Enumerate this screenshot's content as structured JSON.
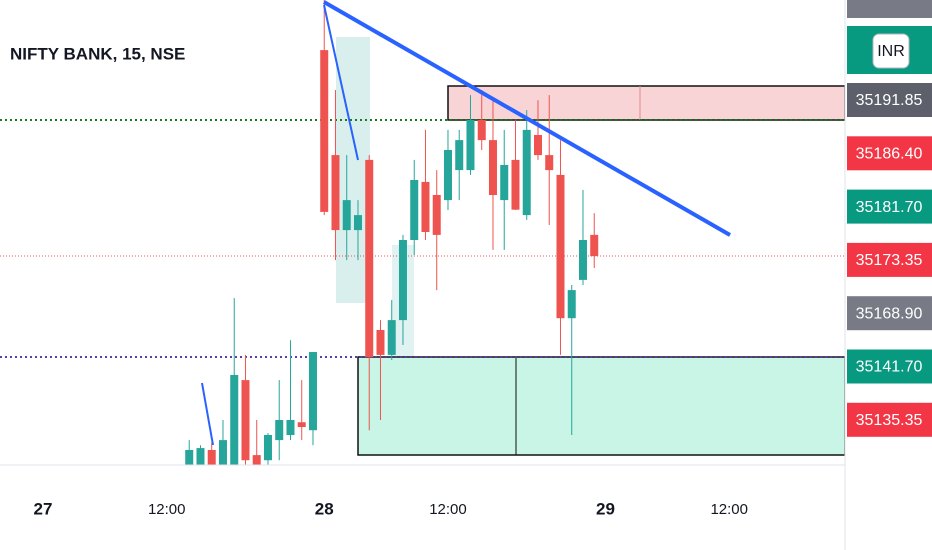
{
  "chart_data": {
    "type": "candlestick",
    "title": "NIFTY BANK, 15, NSE",
    "currency": "INR",
    "up_color": "#26a69a",
    "down_color": "#ef5350",
    "x": [
      13,
      14,
      15,
      16,
      17,
      18,
      19,
      20,
      21,
      22,
      23,
      24,
      25,
      26,
      27,
      28,
      29,
      30,
      31,
      32,
      33,
      34,
      35,
      36,
      37,
      38,
      39,
      40,
      41,
      42,
      43,
      44,
      45,
      46,
      47,
      48,
      49
    ],
    "open": [
      35105.0,
      35106.0,
      35112.6,
      35106.0,
      35106.0,
      35134.5,
      35111.0,
      35109.4,
      35115.7,
      35117.3,
      35121.3,
      35118.8,
      35237.9,
      35205.0,
      35181.5,
      35181.5,
      35203.5,
      35150.2,
      35142.4,
      35153.3,
      35178.4,
      35196.6,
      35192.5,
      35190.9,
      35200.3,
      35200.3,
      35216.0,
      35209.7,
      35190.9,
      35203.5,
      35186.2,
      35211.3,
      35205.0,
      35198.8,
      35153.9,
      35165.9,
      35180.0
    ],
    "high": [
      35115.7,
      35114.1,
      35115.0,
      35122.0,
      35160.2,
      35142.4,
      35122.0,
      35117.9,
      35134.5,
      35147.0,
      35134.5,
      35143.3,
      35253.6,
      35225.4,
      35205.0,
      35190.9,
      35205.0,
      35153.3,
      35159.6,
      35180.0,
      35203.5,
      35212.9,
      35200.3,
      35212.9,
      35212.9,
      35223.8,
      35225.4,
      35222.2,
      35212.9,
      35215.9,
      35219.1,
      35222.2,
      35223.8,
      35209.7,
      35164.3,
      35194.1,
      35186.8
    ],
    "low": [
      35104.0,
      35104.0,
      35104.0,
      35104.0,
      35104.0,
      35104.0,
      35104.0,
      35104.0,
      35109.4,
      35115.7,
      35115.7,
      35114.1,
      35186.2,
      35172.1,
      35172.1,
      35172.1,
      35118.8,
      35122.0,
      35140.8,
      35145.5,
      35173.7,
      35178.4,
      35162.7,
      35187.8,
      35190.9,
      35198.8,
      35206.6,
      35175.3,
      35175.3,
      35187.8,
      35184.7,
      35203.5,
      35183.1,
      35142.4,
      35117.3,
      35164.3,
      35169.6
    ],
    "close": [
      35112.6,
      35113.2,
      35106.0,
      35115.7,
      35136.1,
      35109.4,
      35108.0,
      35117.3,
      35122.0,
      35122.0,
      35119.8,
      35143.3,
      35187.2,
      35181.5,
      35190.9,
      35186.2,
      35141.7,
      35142.4,
      35153.3,
      35178.4,
      35197.2,
      35180.9,
      35180.0,
      35206.6,
      35209.7,
      35216.0,
      35209.7,
      35192.5,
      35201.9,
      35187.9,
      35212.9,
      35205.0,
      35200.3,
      35153.9,
      35162.7,
      35178.4,
      35173.35
    ],
    "xlim": [
      -3.82,
      71.29
    ],
    "ylim": [
      35107.9,
      35253.6
    ],
    "xticks": [
      {
        "value": 0,
        "label": "27"
      },
      {
        "value": 11,
        "label": "12:00"
      },
      {
        "value": 25,
        "label": "28"
      },
      {
        "value": 36,
        "label": "12:00"
      },
      {
        "value": 50,
        "label": "29"
      },
      {
        "value": 61,
        "label": "12:00"
      }
    ],
    "price_labels": [
      {
        "value": 35191.85,
        "color": "#5d606b"
      },
      {
        "value": 35186.4,
        "label": "35186.40",
        "color": "#f23645"
      },
      {
        "value": 35181.7,
        "label": "35181.70",
        "color": "#089981"
      },
      {
        "value": 35173.35,
        "color": "#f23645"
      },
      {
        "value": 35168.9,
        "label": "35168.90",
        "color": "#787b86"
      },
      {
        "value": 35141.7,
        "label": "35141.70",
        "color": "#089981"
      },
      {
        "value": 35135.35,
        "color": "#f23645"
      }
    ]
  }
}
